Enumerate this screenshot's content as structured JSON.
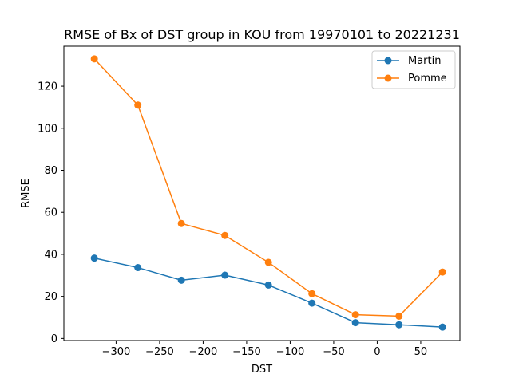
{
  "chart_data": {
    "type": "line",
    "title": "RMSE of Bx of DST group in KOU from 19970101 to 20221231",
    "xlabel": "DST",
    "ylabel": "RMSE",
    "x": [
      -325,
      -275,
      -225,
      -175,
      -125,
      -75,
      -25,
      25,
      75
    ],
    "xlim": [
      -360,
      95
    ],
    "ylim": [
      -1,
      139
    ],
    "xticks": [
      -300,
      -250,
      -200,
      -150,
      -100,
      -50,
      0,
      50
    ],
    "xtick_labels": [
      "−300",
      "−250",
      "−200",
      "−150",
      "−100",
      "−50",
      "0",
      "50"
    ],
    "yticks": [
      0,
      20,
      40,
      60,
      80,
      100,
      120
    ],
    "ytick_labels": [
      "0",
      "20",
      "40",
      "60",
      "80",
      "100",
      "120"
    ],
    "grid": false,
    "legend_position": "top-right",
    "series": [
      {
        "name": "Martin",
        "color": "#1f77b4",
        "values": [
          38.2,
          33.7,
          27.7,
          30.1,
          25.4,
          16.8,
          7.5,
          6.5,
          5.4
        ]
      },
      {
        "name": "Pomme",
        "color": "#ff7f0e",
        "values": [
          133.0,
          111.0,
          54.7,
          49.0,
          36.2,
          21.3,
          11.3,
          10.6,
          31.6
        ]
      }
    ]
  }
}
